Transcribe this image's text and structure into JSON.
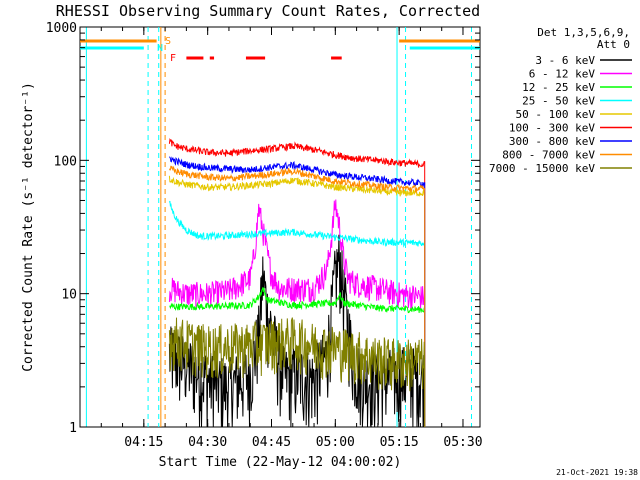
{
  "chart_data": {
    "type": "line",
    "title": "RHESSI Observing Summary Count Rates, Corrected",
    "xlabel": "Start Time (22-May-12 04:00:02)",
    "ylabel": "Corrected Count Rate (s⁻¹ detector⁻¹)",
    "x_unit": "minutes after 04:00",
    "xlim": [
      0,
      94
    ],
    "ylim": [
      1,
      1000
    ],
    "yscale": "log",
    "x_ticks": [
      {
        "value": 15,
        "label": "04:15"
      },
      {
        "value": 30,
        "label": "04:30"
      },
      {
        "value": 45,
        "label": "04:45"
      },
      {
        "value": 60,
        "label": "05:00"
      },
      {
        "value": 75,
        "label": "05:15"
      },
      {
        "value": 90,
        "label": "05:30"
      }
    ],
    "y_ticks": [
      {
        "value": 1,
        "label": "1"
      },
      {
        "value": 10,
        "label": "10"
      },
      {
        "value": 100,
        "label": "100"
      },
      {
        "value": 1000,
        "label": "1000"
      }
    ],
    "legend": {
      "placement": "right",
      "header": [
        "Det 1,3,5,6,9,",
        "Att 0"
      ]
    },
    "series": [
      {
        "name": "3 - 6 keV",
        "color": "#000000",
        "kind": "flare",
        "x": [
          21,
          25,
          30,
          35,
          40,
          42,
          43,
          44,
          46,
          48,
          51,
          55,
          58,
          60,
          61,
          62,
          64,
          66,
          70,
          75,
          80,
          81
        ],
        "y": [
          3.5,
          3.0,
          2.3,
          2.0,
          2.6,
          5.0,
          14.0,
          7.5,
          4.0,
          2.4,
          2.5,
          2.3,
          3.5,
          14.0,
          19.0,
          10.0,
          3.5,
          2.4,
          2.2,
          2.5,
          2.4,
          2.4
        ]
      },
      {
        "name": "6 - 12 keV",
        "color": "#ff00ff",
        "kind": "flare",
        "x": [
          21,
          25,
          30,
          35,
          40,
          41,
          42,
          43,
          44,
          45,
          47,
          50,
          55,
          58,
          59,
          60,
          61,
          62,
          63,
          65,
          70,
          75,
          80,
          81
        ],
        "y": [
          11.0,
          10.0,
          10.0,
          10.5,
          13.0,
          20.0,
          44.0,
          30.0,
          20.0,
          14.0,
          11.0,
          11.0,
          11.0,
          15.0,
          25.0,
          48.0,
          32.0,
          18.0,
          13.0,
          12.0,
          11.0,
          10.0,
          9.5,
          9.5
        ]
      },
      {
        "name": "12 - 25 keV",
        "color": "#00ff00",
        "kind": "band",
        "x": [
          21,
          30,
          40,
          42,
          43,
          44,
          50,
          60,
          61,
          62,
          70,
          81
        ],
        "y": [
          8.0,
          8.0,
          8.2,
          9.5,
          11.0,
          9.0,
          8.2,
          8.5,
          10.0,
          8.5,
          7.8,
          7.6
        ]
      },
      {
        "name": "25 - 50 keV",
        "color": "#00ffff",
        "kind": "band",
        "x": [
          21,
          22,
          23,
          25,
          28,
          33,
          40,
          50,
          60,
          70,
          80,
          81
        ],
        "y": [
          48.0,
          40.0,
          35.0,
          30.0,
          27.0,
          27.0,
          28.0,
          29.0,
          26.5,
          24.5,
          24.0,
          24.0
        ]
      },
      {
        "name": "50 - 100 keV",
        "color": "#e6c800",
        "kind": "band",
        "x": [
          21,
          22,
          25,
          30,
          35,
          40,
          45,
          50,
          55,
          60,
          65,
          70,
          75,
          81
        ],
        "y": [
          73.0,
          70.0,
          66.0,
          63.0,
          63.0,
          65.0,
          67.0,
          71.0,
          67.0,
          63.0,
          61.0,
          59.0,
          57.0,
          57.0
        ]
      },
      {
        "name": "100 - 300 keV",
        "color": "#ff0000",
        "kind": "band",
        "x": [
          21,
          22,
          25,
          30,
          35,
          40,
          45,
          50,
          55,
          60,
          65,
          70,
          75,
          81
        ],
        "y": [
          140.0,
          130.0,
          122.0,
          115.0,
          113.0,
          118.0,
          122.0,
          128.0,
          120.0,
          110.0,
          103.0,
          100.0,
          96.0,
          93.0
        ]
      },
      {
        "name": "300 - 800 keV",
        "color": "#0000ff",
        "kind": "band",
        "x": [
          21,
          22,
          25,
          30,
          35,
          40,
          45,
          50,
          55,
          60,
          65,
          70,
          75,
          81
        ],
        "y": [
          105.0,
          100.0,
          93.0,
          88.0,
          86.0,
          85.0,
          89.0,
          92.0,
          85.0,
          78.0,
          75.0,
          72.0,
          69.0,
          67.0
        ]
      },
      {
        "name": "800 - 7000 keV",
        "color": "#ff8c00",
        "kind": "band",
        "x": [
          21,
          22,
          25,
          30,
          35,
          40,
          45,
          50,
          55,
          60,
          65,
          70,
          75,
          81
        ],
        "y": [
          88.0,
          84.0,
          79.0,
          75.0,
          73.0,
          76.0,
          79.0,
          83.0,
          76.0,
          70.0,
          67.0,
          64.0,
          62.0,
          61.0
        ]
      },
      {
        "name": "7000 - 15000 keV",
        "color": "#808000",
        "kind": "noisy",
        "x": [
          21,
          30,
          40,
          46,
          50,
          55,
          60,
          66,
          70,
          75,
          81
        ],
        "y": [
          4.8,
          4.0,
          4.2,
          4.5,
          4.6,
          4.2,
          4.0,
          3.6,
          3.3,
          3.2,
          3.2
        ]
      }
    ],
    "annotations": {
      "flag_letters": [
        "S",
        "N",
        "F"
      ],
      "saa_intervals": [
        [
          0,
          18
        ],
        [
          75,
          94
        ]
      ],
      "night_intervals": [
        [
          0,
          15
        ],
        [
          77.5,
          94
        ]
      ],
      "flare_intervals": [
        [
          25,
          29
        ],
        [
          30.5,
          31.5
        ],
        [
          39,
          43.5
        ],
        [
          59,
          61.5
        ]
      ],
      "dashed_markers": [
        {
          "value": 16,
          "color": "#00ffff"
        },
        {
          "value": 18.5,
          "color": "#00ffff"
        },
        {
          "value": 20,
          "color": "#ff8c00"
        },
        {
          "value": 76.5,
          "color": "#00ffff"
        },
        {
          "value": 92,
          "color": "#00ffff"
        }
      ],
      "solid_markers": [
        {
          "value": 1.5,
          "color": "#00ffff"
        },
        {
          "value": 74.5,
          "color": "#00ffff"
        },
        {
          "value": 19,
          "color": "#ff8c00"
        }
      ]
    },
    "footer_timestamp": "21-Oct-2021 19:38"
  }
}
